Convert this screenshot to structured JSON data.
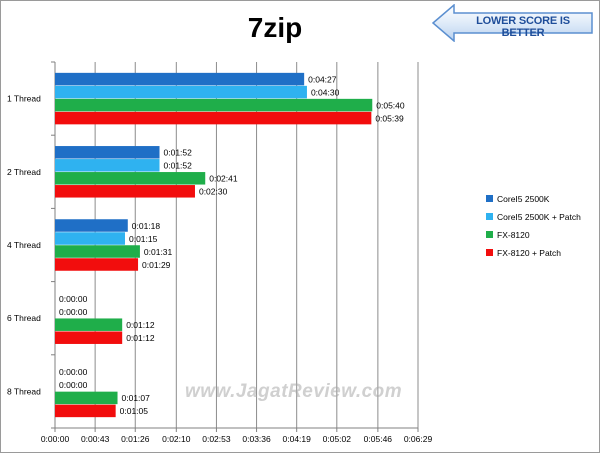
{
  "chart_data": {
    "type": "bar",
    "orientation": "horizontal",
    "title": "7zip",
    "categories": [
      "1 Thread",
      "2 Thread",
      "4 Thread",
      "6 Thread",
      "8 Thread"
    ],
    "series": [
      {
        "name": "CoreI5 2500K",
        "color": "#1f6fc6",
        "values": [
          267,
          112,
          78,
          0,
          0
        ],
        "labels": [
          "0:04:27",
          "0:01:52",
          "0:01:18",
          "0:00:00",
          "0:00:00"
        ]
      },
      {
        "name": "CoreI5 2500K + Patch",
        "color": "#2fb2f0",
        "values": [
          270,
          112,
          75,
          0,
          0
        ],
        "labels": [
          "0:04:30",
          "0:01:52",
          "0:01:15",
          "0:00:00",
          "0:00:00"
        ]
      },
      {
        "name": "FX-8120",
        "color": "#1fae4a",
        "values": [
          340,
          161,
          91,
          72,
          67
        ],
        "labels": [
          "0:05:40",
          "0:02:41",
          "0:01:31",
          "0:01:12",
          "0:01:07"
        ]
      },
      {
        "name": "FX-8120 + Patch",
        "color": "#f20d0d",
        "values": [
          339,
          150,
          89,
          72,
          65
        ],
        "labels": [
          "0:05:39",
          "0:02:30",
          "0:01:29",
          "0:01:12",
          "0:01:05"
        ]
      }
    ],
    "xlim": [
      0,
      389
    ],
    "xticks": [
      0,
      43,
      86,
      130,
      173,
      216,
      259,
      302,
      346,
      389
    ],
    "xtick_labels": [
      "0:00:00",
      "0:00:43",
      "0:01:26",
      "0:02:10",
      "0:02:53",
      "0:03:36",
      "0:04:19",
      "0:05:02",
      "0:05:46",
      "0:06:29"
    ],
    "grid": "vertical",
    "legend": "right",
    "annotation": "LOWER SCORE IS BETTER",
    "watermark": "www.JagatReview.com"
  }
}
